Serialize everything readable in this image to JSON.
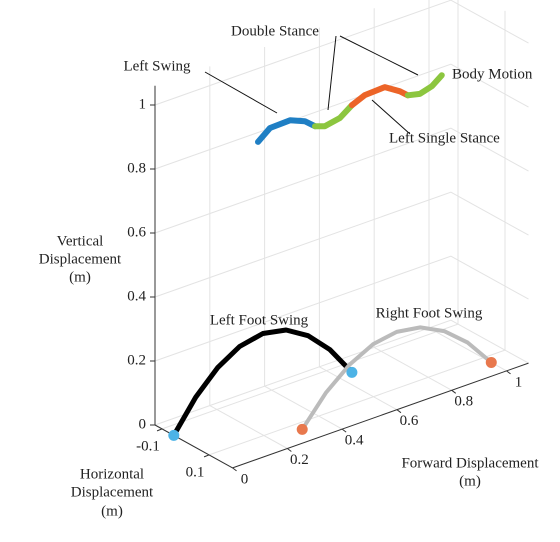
{
  "chart_data": {
    "type": "line3d",
    "xlabel": [
      "Forward Displacement",
      "(m)"
    ],
    "ylabel": [
      "Horizontal",
      "Displacement",
      "(m)"
    ],
    "zlabel": [
      "Vertical",
      "Displacement",
      "(m)"
    ],
    "xlim": [
      0,
      1.08
    ],
    "ylim": [
      -0.13,
      0.2
    ],
    "zlim": [
      0,
      1.06
    ],
    "xticks": [
      0,
      0.2,
      0.4,
      0.6,
      0.8,
      1
    ],
    "yticks": [
      -0.1,
      0.1
    ],
    "zticks": [
      0,
      0.2,
      0.4,
      0.6,
      0.8,
      1
    ],
    "grid": true,
    "annotations": [
      "Double Stance",
      "Left Swing",
      "Body Motion",
      "Left Single Stance",
      "Left Foot Swing",
      "Right Foot Swing"
    ],
    "series": [
      {
        "color": "#000000",
        "width": 5,
        "depth": -0.05,
        "x": [
          0,
          0.08,
          0.16,
          0.24,
          0.325,
          0.41,
          0.49,
          0.57,
          0.65
        ],
        "z": [
          0,
          0.095,
          0.163,
          0.205,
          0.22,
          0.205,
          0.163,
          0.095,
          0
        ]
      },
      {
        "color": "#bbbbbb",
        "width": 4,
        "depth": 0.135,
        "x": [
          0.31,
          0.396,
          0.483,
          0.569,
          0.655,
          0.741,
          0.828,
          0.914,
          1.0
        ],
        "z": [
          0,
          0.088,
          0.15,
          0.188,
          0.2,
          0.188,
          0.15,
          0.088,
          0
        ]
      },
      {
        "color": "#1f7fc4",
        "width": 6,
        "depth": 0.04,
        "x": [
          0.23,
          0.274,
          0.347,
          0.401,
          0.438
        ],
        "z": [
          0.884,
          0.914,
          0.916,
          0.897,
          0.87
        ]
      },
      {
        "color": "#8cc63f",
        "width": 6,
        "depth": 0.04,
        "x": [
          0.438,
          0.474,
          0.529,
          0.573
        ],
        "z": [
          0.87,
          0.859,
          0.868,
          0.895
        ]
      },
      {
        "color": "#ec6428",
        "width": 6,
        "depth": 0.04,
        "x": [
          0.573,
          0.62,
          0.693,
          0.748,
          0.777
        ],
        "z": [
          0.895,
          0.912,
          0.915,
          0.885,
          0.864
        ]
      },
      {
        "color": "#8cc63f",
        "width": 6,
        "depth": 0.04,
        "x": [
          0.777,
          0.821,
          0.865,
          0.901
        ],
        "z": [
          0.864,
          0.855,
          0.866,
          0.889
        ]
      }
    ],
    "points": [
      {
        "x": 0,
        "y": -0.05,
        "z": 0,
        "color": "#4db3e6"
      },
      {
        "x": 0.65,
        "y": -0.05,
        "z": 0,
        "color": "#4db3e6"
      },
      {
        "x": 0.31,
        "y": 0.135,
        "z": 0,
        "color": "#e8784d"
      },
      {
        "x": 1.0,
        "y": 0.135,
        "z": 0,
        "color": "#e8784d"
      }
    ]
  }
}
